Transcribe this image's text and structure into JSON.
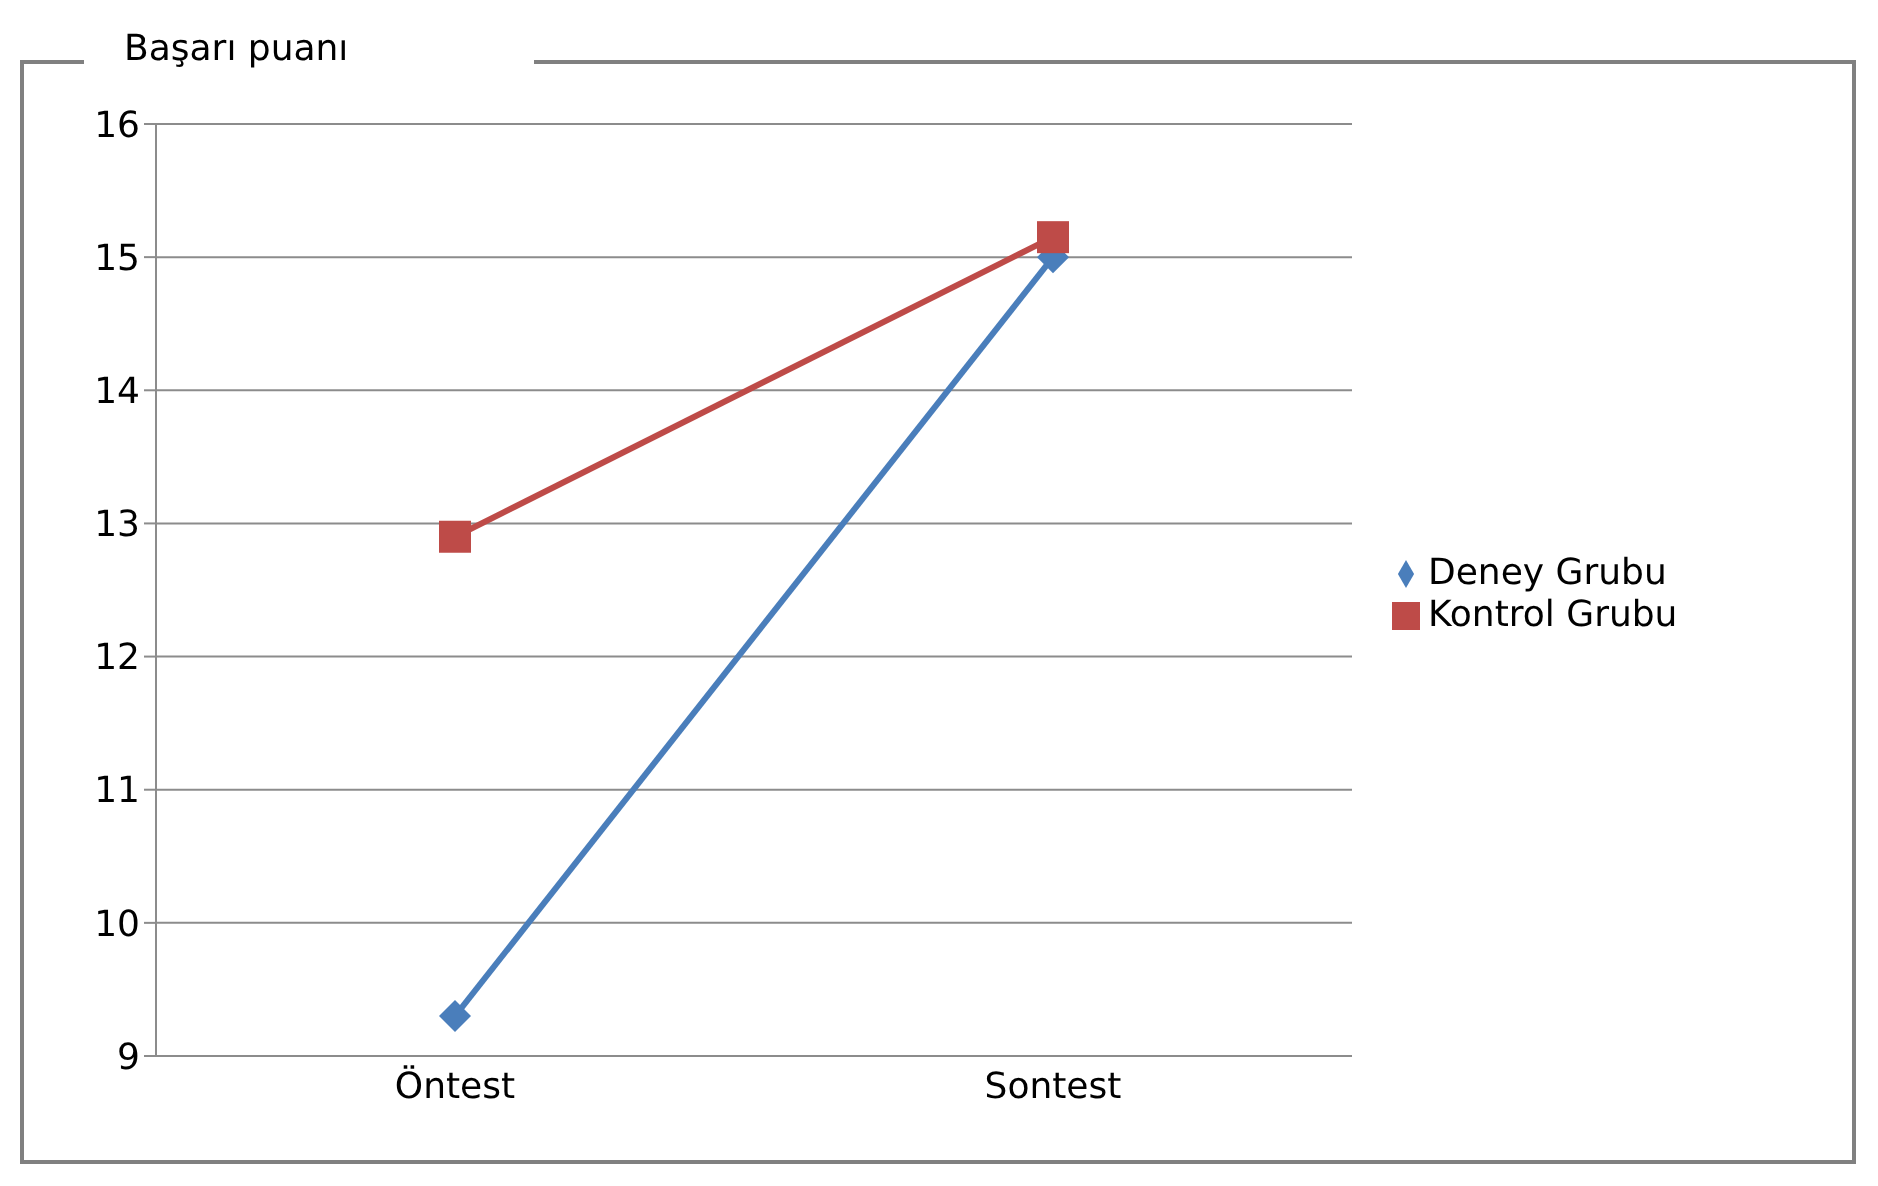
{
  "chart_data": {
    "type": "line",
    "ylabel": "Başarı puanı",
    "categories": [
      "Öntest",
      "Sontest"
    ],
    "series": [
      {
        "name": "Deney Grubu",
        "color": "#4a7ebb",
        "values": [
          9.3,
          15.0
        ],
        "marker": "diamond"
      },
      {
        "name": "Kontrol Grubu",
        "color": "#be4b48",
        "values": [
          12.9,
          15.15
        ],
        "marker": "square"
      }
    ],
    "ylim": [
      9,
      16
    ],
    "yticks": [
      9,
      10,
      11,
      12,
      13,
      14,
      15,
      16
    ],
    "grid": "y",
    "legend": "right"
  }
}
